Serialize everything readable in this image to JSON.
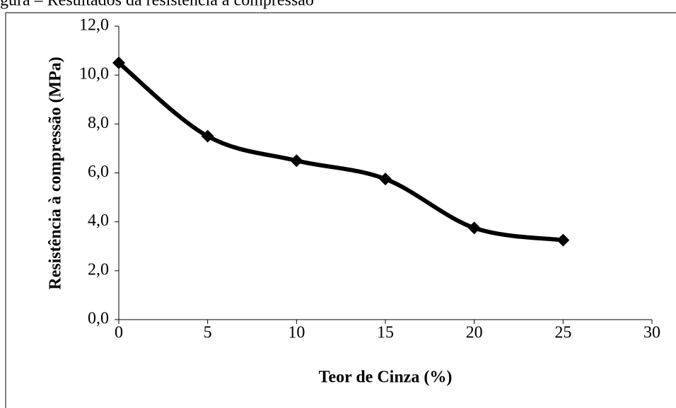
{
  "caption": "Figura – Resultados da resistência à compressão",
  "chart_data": {
    "type": "line",
    "xlabel": "Teor de Cinza (%)",
    "ylabel": "Resistência à compressão (MPa)",
    "x": [
      0,
      5,
      10,
      15,
      20,
      25
    ],
    "series": [
      {
        "color": "#000000",
        "values": [
          10.5,
          7.5,
          6.5,
          5.75,
          3.75,
          3.25
        ]
      }
    ],
    "xlim": [
      0,
      30
    ],
    "xticks": [
      0,
      5,
      10,
      15,
      20,
      25,
      30
    ],
    "ylim": [
      0,
      12
    ],
    "yticks": [
      {
        "value": 0,
        "label": "0,0"
      },
      {
        "value": 2,
        "label": "2,0"
      },
      {
        "value": 4,
        "label": "4,0"
      },
      {
        "value": 6,
        "label": "6,0"
      },
      {
        "value": 8,
        "label": "8,0"
      },
      {
        "value": 10,
        "label": "10,0"
      },
      {
        "value": 12,
        "label": "12,0"
      }
    ],
    "smooth": true,
    "marker": "diamond"
  }
}
